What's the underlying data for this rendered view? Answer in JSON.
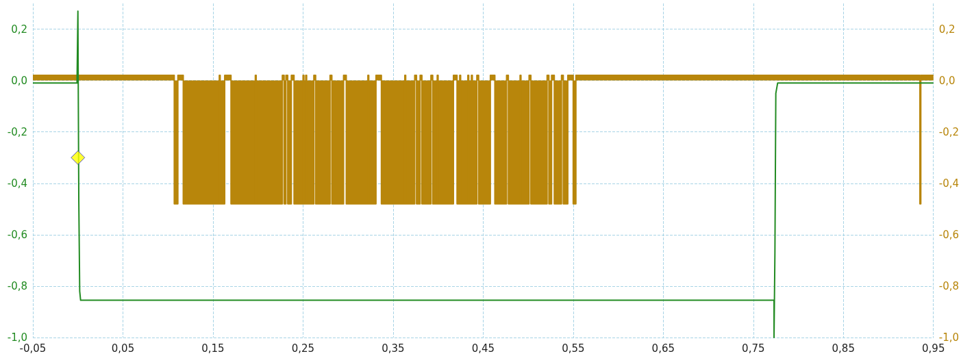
{
  "chart_data": {
    "type": "line",
    "marker": "none",
    "grid": true,
    "line_style": "solid",
    "xlim": [
      -0.05,
      0.95
    ],
    "ylim": [
      -1.0,
      0.3
    ],
    "y2lim": [
      -1.0,
      0.3
    ],
    "xticks": [
      {
        "value": -0.05,
        "label": "-0,05"
      },
      {
        "value": 0.05,
        "label": "0,05"
      },
      {
        "value": 0.15,
        "label": "0,15"
      },
      {
        "value": 0.25,
        "label": "0,25"
      },
      {
        "value": 0.35,
        "label": "0,35"
      },
      {
        "value": 0.45,
        "label": "0,45"
      },
      {
        "value": 0.55,
        "label": "0,55"
      },
      {
        "value": 0.65,
        "label": "0,65"
      },
      {
        "value": 0.75,
        "label": "0,75"
      },
      {
        "value": 0.85,
        "label": "0,85"
      },
      {
        "value": 0.95,
        "label": "0,95"
      }
    ],
    "yticks": [
      {
        "value": -1.0,
        "label": "-1,0"
      },
      {
        "value": -0.8,
        "label": "-0,8"
      },
      {
        "value": -0.6,
        "label": "-0,6"
      },
      {
        "value": -0.4,
        "label": "-0,4"
      },
      {
        "value": -0.2,
        "label": "-0,2"
      },
      {
        "value": 0.0,
        "label": "0,0"
      },
      {
        "value": 0.2,
        "label": "0,2"
      }
    ],
    "y2ticks": [
      {
        "value": -1.0,
        "label": "-1,0"
      },
      {
        "value": -0.8,
        "label": "-0,8"
      },
      {
        "value": -0.6,
        "label": "-0,6"
      },
      {
        "value": -0.4,
        "label": "-0,4"
      },
      {
        "value": -0.2,
        "label": "-0,2"
      },
      {
        "value": 0.0,
        "label": "0,0"
      },
      {
        "value": 0.2,
        "label": "0,2"
      }
    ],
    "series": [
      {
        "type": "area",
        "axis": "y2",
        "color": "#b8860b",
        "x": [
          -0.05,
          0.107,
          0.107,
          0.111,
          0.111,
          0.117,
          0.117,
          0.157,
          0.157,
          0.158,
          0.158,
          0.163,
          0.163,
          0.17,
          0.17,
          0.197,
          0.197,
          0.198,
          0.198,
          0.227,
          0.227,
          0.229,
          0.229,
          0.231,
          0.231,
          0.233,
          0.233,
          0.237,
          0.237,
          0.24,
          0.24,
          0.25,
          0.25,
          0.251,
          0.251,
          0.253,
          0.253,
          0.254,
          0.254,
          0.262,
          0.262,
          0.264,
          0.264,
          0.28,
          0.28,
          0.282,
          0.282,
          0.295,
          0.295,
          0.298,
          0.298,
          0.322,
          0.322,
          0.323,
          0.323,
          0.331,
          0.331,
          0.337,
          0.337,
          0.363,
          0.363,
          0.364,
          0.364,
          0.374,
          0.374,
          0.376,
          0.376,
          0.38,
          0.38,
          0.382,
          0.382,
          0.392,
          0.392,
          0.394,
          0.394,
          0.399,
          0.399,
          0.4,
          0.4,
          0.417,
          0.417,
          0.421,
          0.421,
          0.424,
          0.424,
          0.425,
          0.425,
          0.433,
          0.433,
          0.434,
          0.434,
          0.437,
          0.437,
          0.438,
          0.438,
          0.443,
          0.443,
          0.445,
          0.445,
          0.458,
          0.458,
          0.463,
          0.463,
          0.476,
          0.476,
          0.478,
          0.478,
          0.491,
          0.491,
          0.492,
          0.492,
          0.501,
          0.501,
          0.503,
          0.503,
          0.521,
          0.521,
          0.523,
          0.523,
          0.526,
          0.526,
          0.529,
          0.529,
          0.537,
          0.537,
          0.539,
          0.539,
          0.544,
          0.544,
          0.55,
          0.55,
          0.553,
          0.553,
          0.935,
          0.935,
          0.936,
          0.936,
          0.95
        ],
        "values": [
          0.02,
          0.02,
          -0.48,
          -0.48,
          0.02,
          0.02,
          -0.48,
          -0.48,
          0.02,
          0.02,
          -0.48,
          -0.48,
          0.02,
          0.02,
          -0.48,
          -0.48,
          0.02,
          0.02,
          -0.48,
          -0.48,
          0.02,
          0.02,
          -0.48,
          -0.48,
          0.02,
          0.02,
          -0.48,
          -0.48,
          0.02,
          0.02,
          -0.48,
          -0.48,
          0.02,
          0.02,
          -0.48,
          -0.48,
          0.02,
          0.02,
          -0.48,
          -0.48,
          0.02,
          0.02,
          -0.48,
          -0.48,
          0.02,
          0.02,
          -0.48,
          -0.48,
          0.02,
          0.02,
          -0.48,
          -0.48,
          0.02,
          0.02,
          -0.48,
          -0.48,
          0.02,
          0.02,
          -0.48,
          -0.48,
          0.02,
          0.02,
          -0.48,
          -0.48,
          0.02,
          0.02,
          -0.48,
          -0.48,
          0.02,
          0.02,
          -0.48,
          -0.48,
          0.02,
          0.02,
          -0.48,
          -0.48,
          0.02,
          0.02,
          -0.48,
          -0.48,
          0.02,
          0.02,
          -0.48,
          -0.48,
          0.02,
          0.02,
          -0.48,
          -0.48,
          0.02,
          0.02,
          -0.48,
          -0.48,
          0.02,
          0.02,
          -0.48,
          -0.48,
          0.02,
          0.02,
          -0.48,
          -0.48,
          0.02,
          0.02,
          -0.48,
          -0.48,
          0.02,
          0.02,
          -0.48,
          -0.48,
          0.02,
          0.02,
          -0.48,
          -0.48,
          0.02,
          0.02,
          -0.48,
          -0.48,
          0.02,
          0.02,
          -0.48,
          -0.48,
          0.02,
          0.02,
          -0.48,
          -0.48,
          0.02,
          0.02,
          -0.48,
          -0.48,
          0.02,
          0.02,
          -0.48,
          -0.48,
          0.02,
          0.02,
          -0.48,
          -0.48,
          0.02,
          0.02
        ]
      },
      {
        "color": "#228b22",
        "x": [
          -0.05,
          -0.001,
          0.0,
          0.001,
          0.002,
          0.003,
          0.773,
          0.773,
          0.774,
          0.775,
          0.777,
          0.95
        ],
        "values": [
          -0.01,
          -0.01,
          0.27,
          -0.47,
          -0.82,
          -0.855,
          -0.855,
          -1.0,
          -0.67,
          -0.05,
          -0.01,
          -0.01
        ]
      },
      {
        "type": "scatter",
        "marker": "diamond",
        "color": "#ffff00",
        "x": [
          0.0
        ],
        "values": [
          -0.3
        ]
      }
    ]
  }
}
